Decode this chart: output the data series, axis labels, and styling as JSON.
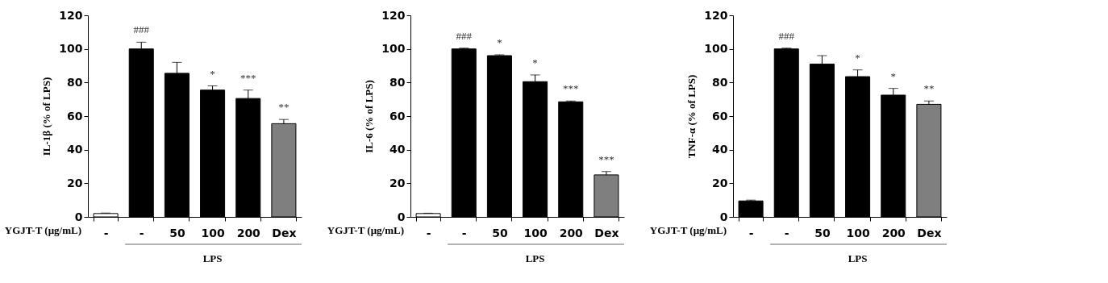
{
  "chart_data": [
    {
      "type": "bar",
      "ylabel": "IL-1β (% of LPS)",
      "xlabel": "YGJT-T (μg/mL)",
      "categories": [
        "-",
        "-",
        "50",
        "100",
        "200",
        "Dex"
      ],
      "values": [
        2,
        100,
        85.5,
        75.5,
        70.5,
        55.5
      ],
      "colors": [
        "#ffffff",
        "#000000",
        "#000000",
        "#000000",
        "#000000",
        "#7f7f7f"
      ],
      "errors": [
        [
          2,
          2.3
        ],
        [
          100,
          104
        ],
        [
          85.5,
          92
        ],
        [
          75.5,
          78
        ],
        [
          70.5,
          75.5
        ],
        [
          55.5,
          58
        ]
      ],
      "value_labels": [
        null,
        "###",
        null,
        "*",
        "***",
        "**"
      ],
      "annotations": [
        "LPS"
      ],
      "ylim": [
        0,
        120
      ],
      "yticks": [
        0,
        20,
        40,
        60,
        80,
        100,
        120
      ],
      "grid": false
    },
    {
      "type": "bar",
      "ylabel": "IL-6 (% of LPS)",
      "xlabel": "YGJT-T (μg/mL)",
      "categories": [
        "-",
        "-",
        "50",
        "100",
        "200",
        "Dex"
      ],
      "values": [
        2,
        100,
        96,
        80.5,
        68.5,
        25
      ],
      "colors": [
        "#ffffff",
        "#000000",
        "#000000",
        "#000000",
        "#000000",
        "#7f7f7f"
      ],
      "errors": [
        [
          2,
          2.2
        ],
        [
          100,
          100.5
        ],
        [
          96,
          96.5
        ],
        [
          80.5,
          84.5
        ],
        [
          68.5,
          69
        ],
        [
          25,
          27
        ]
      ],
      "value_labels": [
        null,
        "###",
        "*",
        "*",
        "***",
        "***"
      ],
      "annotations": [
        "LPS"
      ],
      "ylim": [
        0,
        120
      ],
      "yticks": [
        0,
        20,
        40,
        60,
        80,
        100,
        120
      ],
      "grid": false
    },
    {
      "type": "bar",
      "ylabel": "TNF-α (% of LPS)",
      "xlabel": "YGJT-T (μg/mL)",
      "categories": [
        "-",
        "-",
        "50",
        "100",
        "200",
        "Dex"
      ],
      "values": [
        9.5,
        100,
        91,
        83.5,
        72.5,
        67
      ],
      "colors": [
        "#000000",
        "#000000",
        "#000000",
        "#000000",
        "#000000",
        "#7f7f7f"
      ],
      "errors": [
        [
          9.5,
          10
        ],
        [
          100,
          100.5
        ],
        [
          91,
          96
        ],
        [
          83.5,
          87.5
        ],
        [
          72.5,
          76.5
        ],
        [
          67,
          69
        ]
      ],
      "value_labels": [
        null,
        "###",
        null,
        "*",
        "*",
        "**"
      ],
      "annotations": [
        "LPS"
      ],
      "ylim": [
        0,
        120
      ],
      "yticks": [
        0,
        20,
        40,
        60,
        80,
        100,
        120
      ],
      "grid": false
    }
  ]
}
